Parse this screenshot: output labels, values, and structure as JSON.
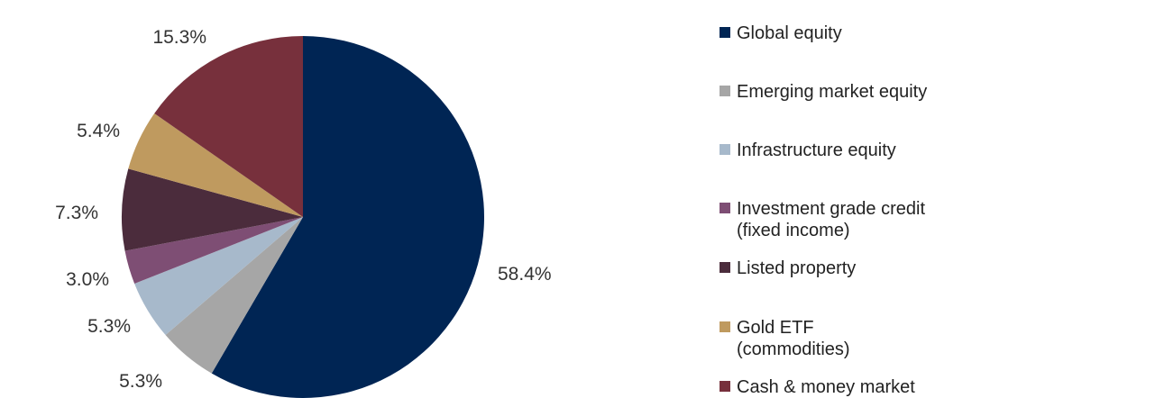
{
  "chart_data": {
    "type": "pie",
    "title": "",
    "start_angle_deg": 0,
    "direction": "clockwise",
    "legend_position": "right",
    "slices": [
      {
        "label": "Global equity",
        "value": 58.4,
        "value_label": "58.4%",
        "color": "#002554"
      },
      {
        "label": "Emerging market equity",
        "value": 5.3,
        "value_label": "5.3%",
        "color": "#A6A6A6"
      },
      {
        "label": "Infrastructure equity",
        "value": 5.3,
        "value_label": "5.3%",
        "color": "#A7B9CB"
      },
      {
        "label": "Investment grade credit\n(fixed income)",
        "value": 3.0,
        "value_label": "3.0%",
        "color": "#7E4E74"
      },
      {
        "label": "Listed property",
        "value": 7.3,
        "value_label": "7.3%",
        "color": "#4B2C3C"
      },
      {
        "label": "Gold ETF\n(commodities)",
        "value": 5.4,
        "value_label": "5.4%",
        "color": "#BF9A5F"
      },
      {
        "label": "Cash & money market",
        "value": 15.3,
        "value_label": "15.3%",
        "color": "#77303C"
      }
    ]
  }
}
